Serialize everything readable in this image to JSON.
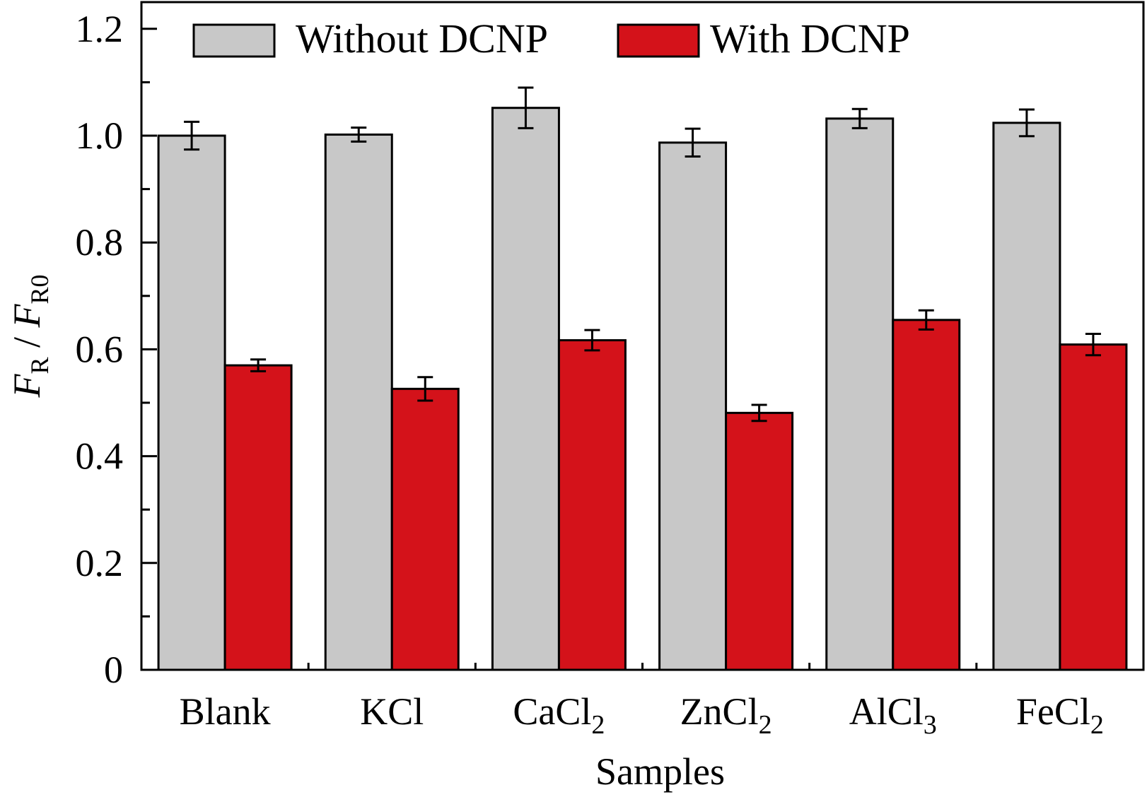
{
  "chart_data": {
    "type": "bar",
    "xlabel": "Samples",
    "ylabel": {
      "main": "F",
      "main_sub": "R",
      "sep": " / ",
      "denom": "F",
      "denom_sub": "R0"
    },
    "ylim": [
      0,
      1.25
    ],
    "yticks": [
      {
        "value": 0,
        "label": "0"
      },
      {
        "value": 0.2,
        "label": "0.2"
      },
      {
        "value": 0.4,
        "label": "0.4"
      },
      {
        "value": 0.6,
        "label": "0.6"
      },
      {
        "value": 0.8,
        "label": "0.8"
      },
      {
        "value": 1.0,
        "label": "1.0"
      },
      {
        "value": 1.2,
        "label": "1.2"
      }
    ],
    "categories": [
      {
        "base": "Blank",
        "sub": ""
      },
      {
        "base": "KCl",
        "sub": ""
      },
      {
        "base": "CaCl",
        "sub": "2"
      },
      {
        "base": "ZnCl",
        "sub": "2"
      },
      {
        "base": "AlCl",
        "sub": "3"
      },
      {
        "base": "FeCl",
        "sub": "2"
      }
    ],
    "series": [
      {
        "name": "Without DCNP",
        "color": "#c8c8c8",
        "values": [
          1.0,
          1.002,
          1.052,
          0.987,
          1.032,
          1.024
        ],
        "errors": [
          0.026,
          0.013,
          0.038,
          0.026,
          0.018,
          0.025
        ]
      },
      {
        "name": "With DCNP",
        "color": "#d4121a",
        "values": [
          0.57,
          0.526,
          0.617,
          0.481,
          0.655,
          0.609
        ],
        "errors": [
          0.011,
          0.022,
          0.019,
          0.015,
          0.018,
          0.02
        ]
      }
    ],
    "grid": false,
    "legend": "top"
  }
}
